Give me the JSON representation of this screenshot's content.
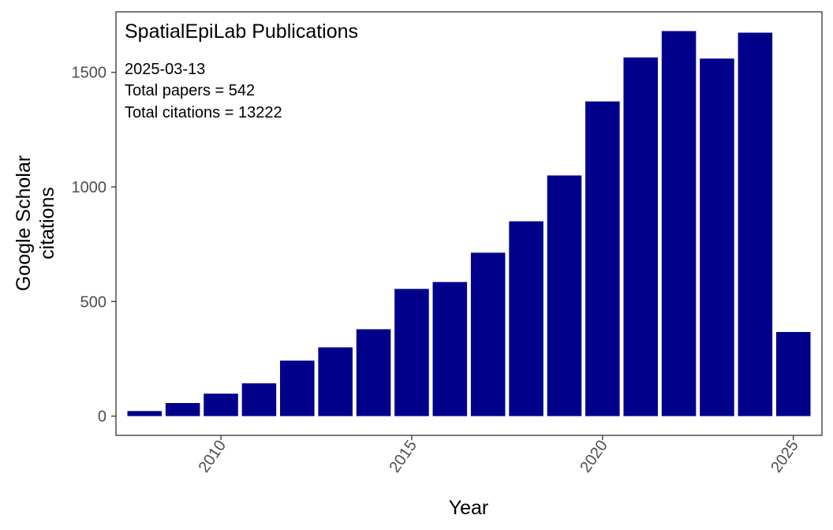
{
  "chart_data": {
    "type": "bar",
    "title": "SpatialEpiLab Publications",
    "annotation_lines": [
      "2025-03-13",
      "Total papers =  542",
      "Total citations =  13222"
    ],
    "xlabel": "Year",
    "ylabel_lines": [
      "Google Scholar",
      "citations"
    ],
    "x": [
      2008,
      2009,
      2010,
      2011,
      2012,
      2013,
      2014,
      2015,
      2016,
      2017,
      2018,
      2019,
      2020,
      2021,
      2022,
      2023,
      2024,
      2025
    ],
    "values": [
      22,
      57,
      98,
      143,
      242,
      300,
      379,
      555,
      585,
      713,
      850,
      1050,
      1373,
      1565,
      1680,
      1560,
      1673,
      367
    ],
    "xticks": [
      2010,
      2015,
      2020,
      2025
    ],
    "xtick_labels": [
      "2010",
      "2015",
      "2020",
      "2025"
    ],
    "yticks": [
      0,
      500,
      1000,
      1500
    ],
    "ytick_labels": [
      "0",
      "500",
      "1000",
      "1500"
    ],
    "xlim": [
      2007.25,
      2025.75
    ],
    "ylim": [
      -84,
      1764
    ],
    "bar_color": "#00008B",
    "grid": false,
    "legend": "none"
  }
}
